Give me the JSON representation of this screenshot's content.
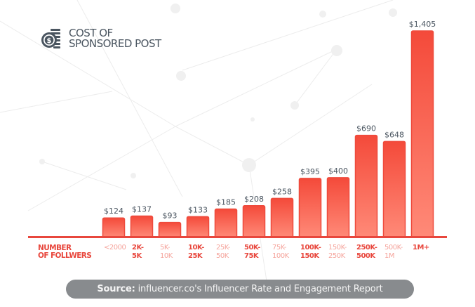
{
  "header": {
    "icon": "dollar-coin-stack-icon",
    "title_line1": "COST OF",
    "title_line2": "SPONSORED POST"
  },
  "axis_title": {
    "line1": "NUMBER",
    "line2": "OF FOLLWERS"
  },
  "source": {
    "label": "Source:",
    "text": " influencer.co's Influencer Rate and Engagement Report"
  },
  "colors": {
    "bar_top": "#f44a3a",
    "bar_bottom": "#ff8a78",
    "baseline": "#e8473d",
    "label_dark": "#e8473d",
    "label_light": "#f5a49c",
    "value_text": "#4a5560",
    "source_bg": "#888b8e"
  },
  "chart_data": {
    "type": "bar",
    "title": "COST OF SPONSORED POST",
    "xlabel": "NUMBER OF FOLLWERS",
    "ylabel": "",
    "categories": [
      "<2000",
      "2K-5K",
      "5K-10K",
      "10K-25K",
      "25K-50K",
      "50K-75K",
      "75K-100K",
      "100K-150K",
      "150K-250K",
      "250K-500K",
      "500K-1M",
      "1M+"
    ],
    "category_lines": [
      [
        "<2000"
      ],
      [
        "2K-",
        "5K"
      ],
      [
        "5K-",
        "10K"
      ],
      [
        "10K-",
        "25K"
      ],
      [
        "25K-",
        "50K"
      ],
      [
        "50K-",
        "75K"
      ],
      [
        "75K-",
        "100K"
      ],
      [
        "100K-",
        "150K"
      ],
      [
        "150K-",
        "250K"
      ],
      [
        "250K-",
        "500K"
      ],
      [
        "500K-",
        "1M"
      ],
      [
        "1M+"
      ]
    ],
    "values": [
      124,
      137,
      93,
      133,
      185,
      208,
      258,
      395,
      400,
      690,
      648,
      1405
    ],
    "value_labels": [
      "$124",
      "$137",
      "$93",
      "$133",
      "$185",
      "$208",
      "$258",
      "$395",
      "$400",
      "$690",
      "$648",
      "$1,405"
    ],
    "ylim": [
      0,
      1405
    ],
    "grid": false,
    "legend": "none"
  }
}
